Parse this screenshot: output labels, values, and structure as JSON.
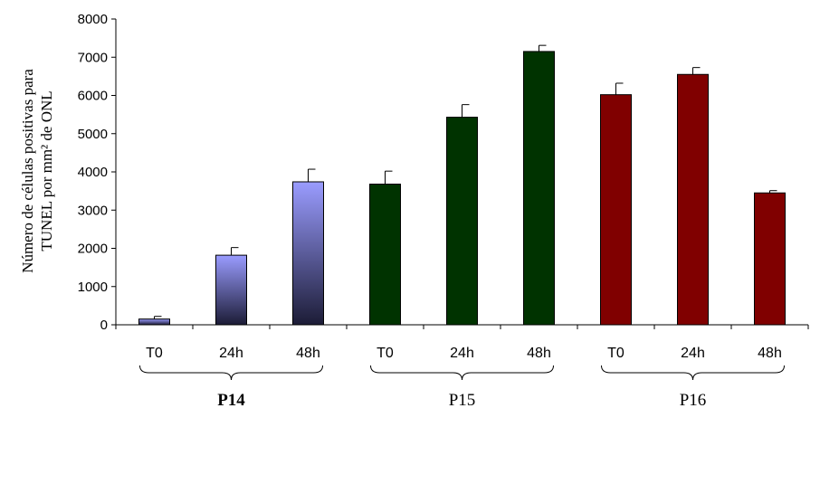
{
  "chart_data": {
    "type": "bar",
    "ylabel_line1": "Número de células positivas para",
    "ylabel_line2": "TUNEL por mm² de ONL",
    "ylim": [
      0,
      8000
    ],
    "yticks": [
      0,
      1000,
      2000,
      3000,
      4000,
      5000,
      6000,
      7000,
      8000
    ],
    "grid": false,
    "groups": [
      {
        "name": "P14",
        "bold": true,
        "colors": [
          "#9a9cff",
          "#1c1c36"
        ],
        "bars": [
          {
            "category": "T0",
            "value": 150,
            "error": 70
          },
          {
            "category": "24h",
            "value": 1820,
            "error": 200
          },
          {
            "category": "48h",
            "value": 3740,
            "error": 330
          }
        ]
      },
      {
        "name": "P15",
        "bold": false,
        "colors": [
          "#003300"
        ],
        "bars": [
          {
            "category": "T0",
            "value": 3680,
            "error": 340
          },
          {
            "category": "24h",
            "value": 5430,
            "error": 330
          },
          {
            "category": "48h",
            "value": 7150,
            "error": 160
          }
        ]
      },
      {
        "name": "P16",
        "bold": false,
        "colors": [
          "#800000"
        ],
        "bars": [
          {
            "category": "T0",
            "value": 6020,
            "error": 300
          },
          {
            "category": "24h",
            "value": 6550,
            "error": 180
          },
          {
            "category": "48h",
            "value": 3450,
            "error": 60
          }
        ]
      }
    ]
  }
}
